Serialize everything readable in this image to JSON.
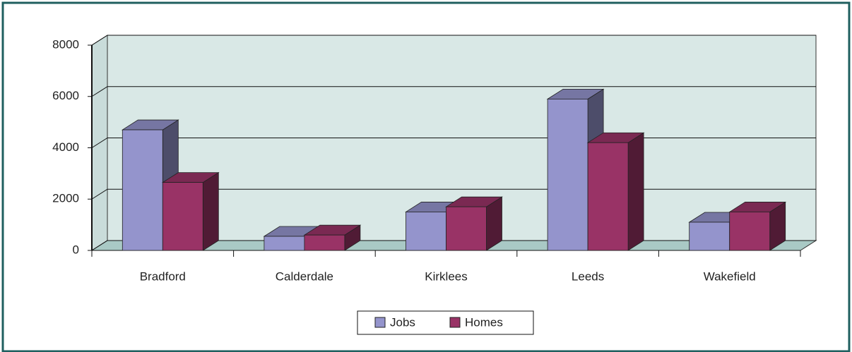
{
  "chart_data": {
    "type": "bar3d",
    "categories": [
      "Bradford",
      "Calderdale",
      "Kirklees",
      "Leeds",
      "Wakefield"
    ],
    "series": [
      {
        "name": "Jobs",
        "color": "#9494cc",
        "values": [
          4700,
          550,
          1500,
          5900,
          1100
        ]
      },
      {
        "name": "Homes",
        "color": "#993366",
        "values": [
          2650,
          600,
          1700,
          4200,
          1500
        ]
      }
    ],
    "ylim": [
      0,
      8000
    ],
    "yticks": [
      0,
      2000,
      4000,
      6000,
      8000
    ],
    "grid": true,
    "legend": "bottom"
  }
}
